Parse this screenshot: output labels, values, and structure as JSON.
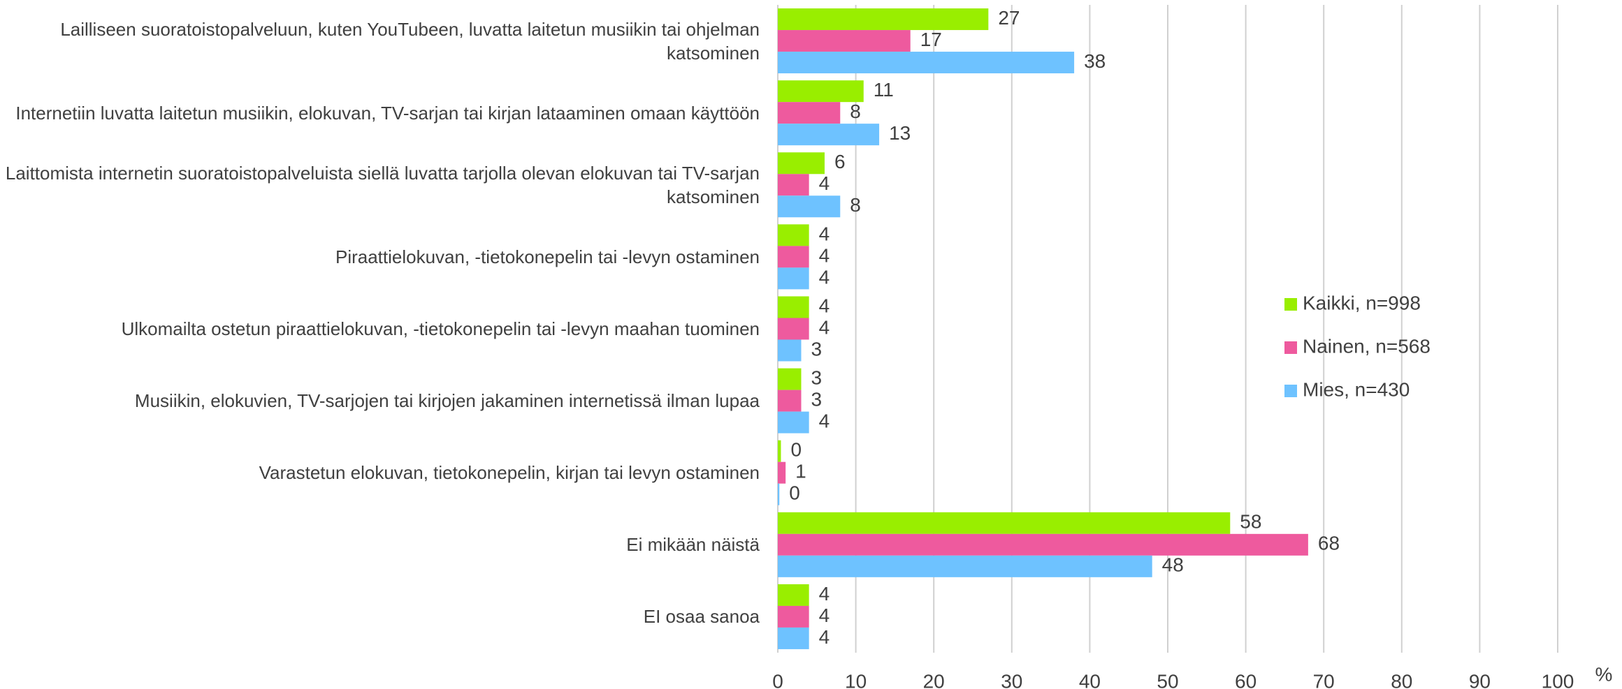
{
  "chart_data": {
    "type": "barh",
    "categories": [
      "Lailliseen suoratoistopalveluun, kuten YouTubeen, luvatta laitetun musiikin tai ohjelman katsominen",
      "Internetiin luvatta laitetun musiikin, elokuvan, TV-sarjan tai kirjan lataaminen omaan käyttöön",
      "Laittomista internetin suoratoistopalveluista siellä luvatta tarjolla olevan elokuvan tai TV-sarjan katsominen",
      "Piraattielokuvan, -tietokonepelin tai -levyn ostaminen",
      "Ulkomailta ostetun piraattielokuvan, -tietokonepelin tai -levyn maahan tuominen",
      "Musiikin, elokuvien, TV-sarjojen tai kirjojen jakaminen internetissä ilman lupaa",
      "Varastetun elokuvan, tietokonepelin, kirjan tai levyn ostaminen",
      "Ei mikään näistä",
      "EI osaa sanoa"
    ],
    "series": [
      {
        "name": "Kaikki, n=998",
        "color": "#99ee00",
        "values": [
          27,
          11,
          6,
          4,
          4,
          3,
          0.4,
          58,
          4
        ],
        "value_labels": [
          "27",
          "11",
          "6",
          "4",
          "4",
          "3",
          "0",
          "58",
          "4"
        ]
      },
      {
        "name": "Nainen, n=568",
        "color": "#ee5a9e",
        "values": [
          17,
          8,
          4,
          4,
          4,
          3,
          1,
          68,
          4
        ],
        "value_labels": [
          "17",
          "8",
          "4",
          "4",
          "4",
          "3",
          "1",
          "68",
          "4"
        ]
      },
      {
        "name": "Mies, n=430",
        "color": "#6ec2ff",
        "values": [
          38,
          13,
          8,
          4,
          3,
          4,
          0.2,
          48,
          4
        ],
        "value_labels": [
          "38",
          "13",
          "8",
          "4",
          "3",
          "4",
          "0",
          "48",
          "4"
        ]
      }
    ],
    "xlim": [
      0,
      100
    ],
    "xticks": [
      0,
      10,
      20,
      30,
      40,
      50,
      60,
      70,
      80,
      90,
      100
    ],
    "x_unit": "%",
    "grid": true,
    "legend_position": "right"
  }
}
